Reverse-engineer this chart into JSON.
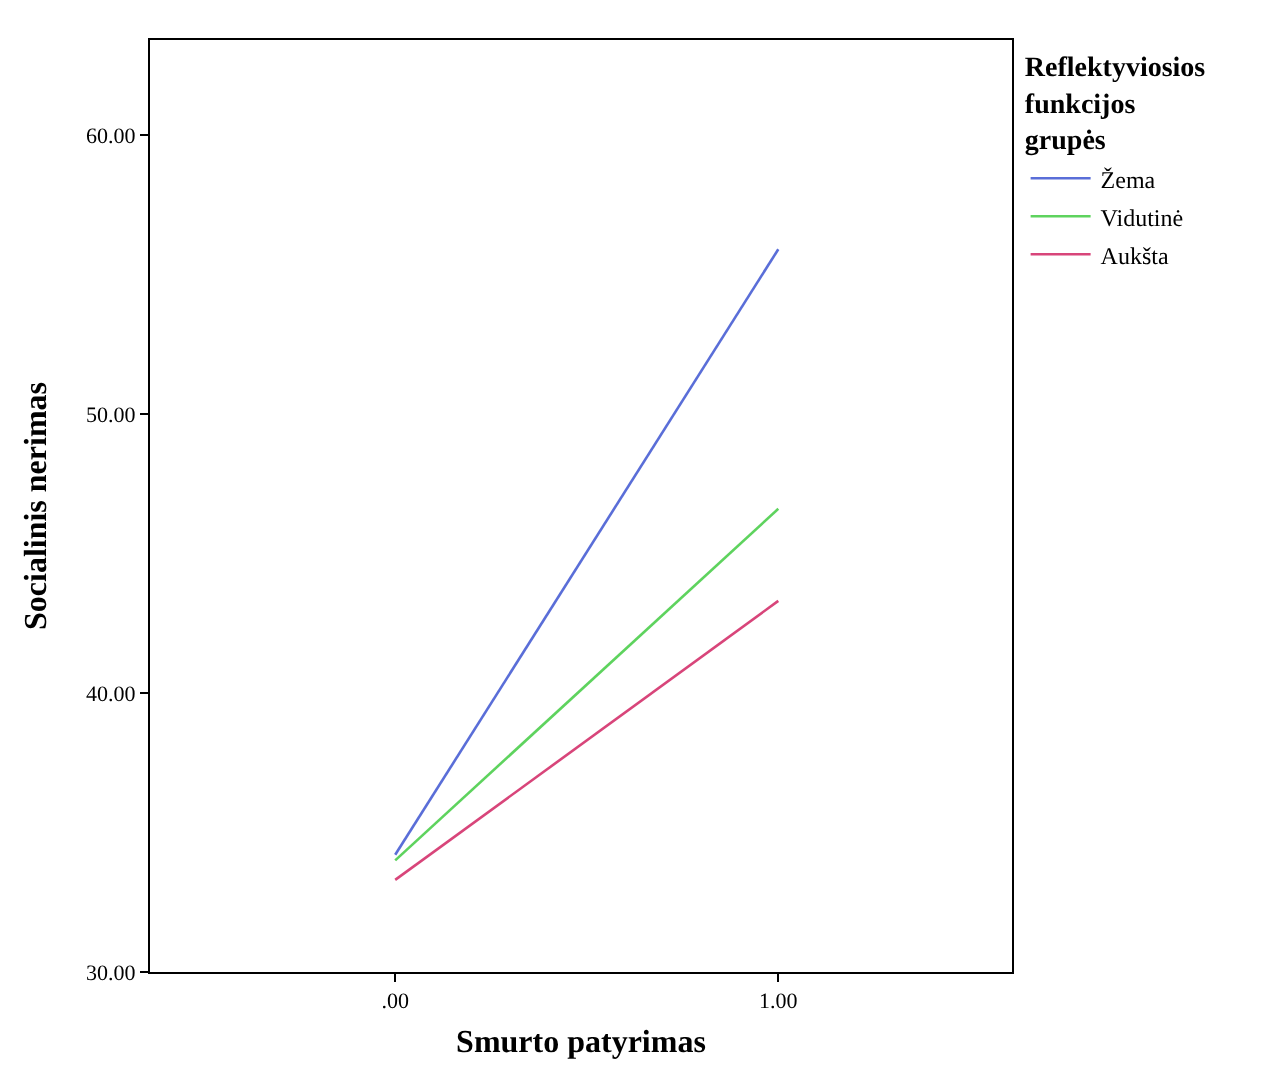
{
  "chart_data": {
    "type": "line",
    "xlabel": "Smurto patyrimas",
    "ylabel": "Socialinis nerimas",
    "legend_title": "Reflektyviosios funkcijos grupės",
    "x": [
      0,
      1
    ],
    "series": [
      {
        "name": "Žema",
        "color": "#5a6ed8",
        "values": [
          34.2,
          55.9
        ]
      },
      {
        "name": "Vidutinė",
        "color": "#5ed35e",
        "values": [
          34.0,
          46.6
        ]
      },
      {
        "name": "Aukšta",
        "color": "#d8457a",
        "values": [
          33.3,
          43.3
        ]
      }
    ],
    "xlim": [
      -0.64,
      1.61
    ],
    "xticks": [
      {
        "value": 0,
        "label": ".00"
      },
      {
        "value": 1,
        "label": "1.00"
      }
    ],
    "ylim": [
      30,
      63.4
    ],
    "yticks": [
      {
        "value": 30,
        "label": "30.00"
      },
      {
        "value": 40,
        "label": "40.00"
      },
      {
        "value": 50,
        "label": "50.00"
      },
      {
        "value": 60,
        "label": "60.00"
      }
    ],
    "legend": "top right",
    "marker": "none",
    "line_style": "solid"
  }
}
